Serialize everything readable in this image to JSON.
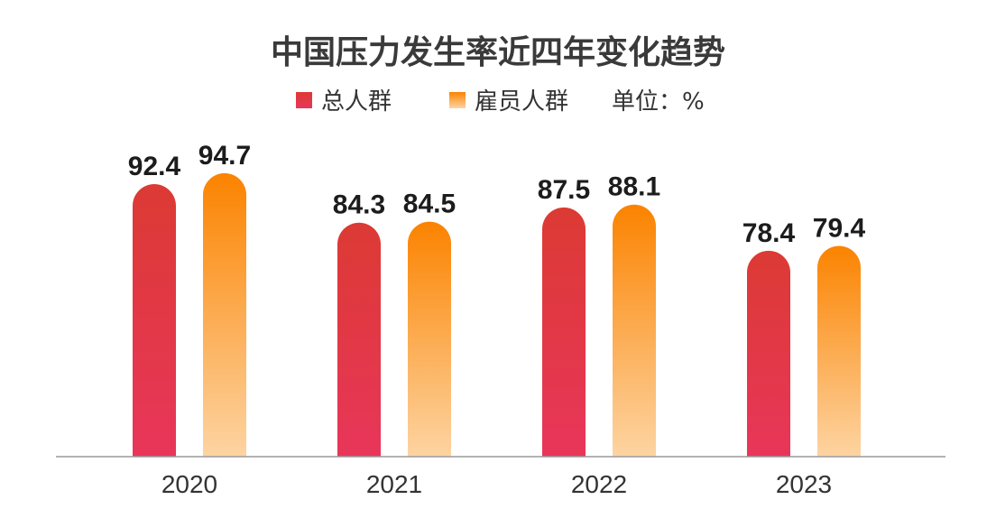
{
  "chart_data": {
    "type": "bar",
    "title": "中国压力发生率近四年变化趋势",
    "unit_label": "单位：%",
    "categories": [
      "2020",
      "2021",
      "2022",
      "2023"
    ],
    "series": [
      {
        "name": "总人群",
        "values": [
          92.4,
          84.3,
          87.5,
          78.4
        ],
        "color_top": "#dc3a34",
        "color_bottom": "#e8365a"
      },
      {
        "name": "雇员人群",
        "values": [
          94.7,
          84.5,
          88.1,
          79.4
        ],
        "color_top": "#fb8300",
        "color_bottom": "#fdd4a2"
      }
    ],
    "legend_position": "top-center",
    "grid": false,
    "ylim": [
      0,
      100
    ]
  }
}
